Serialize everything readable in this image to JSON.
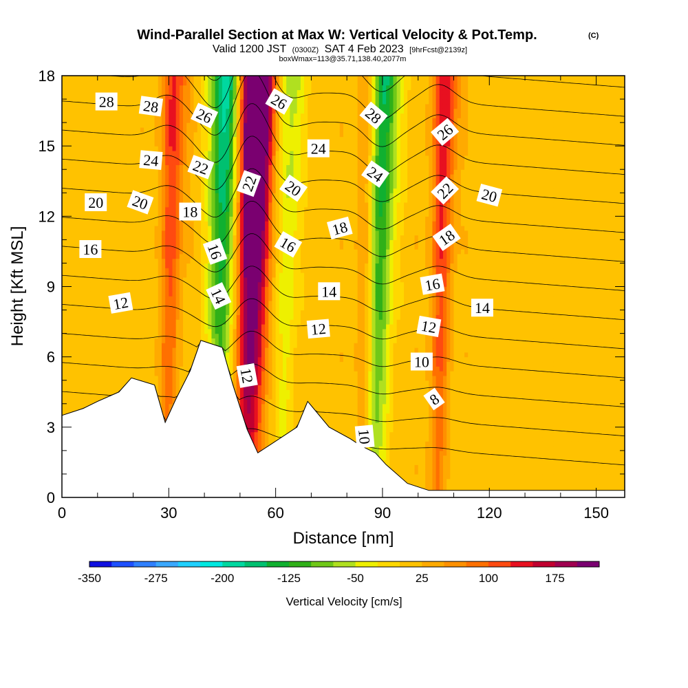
{
  "chart_data": {
    "type": "heatmap",
    "title": "Wind-Parallel Section at Max W: Vertical Velocity & Pot.Temp.",
    "copyright": "(C)",
    "subtitle": {
      "valid": "Valid 1200 JST",
      "utc": "(0300Z)",
      "date": "SAT 4 Feb 2023",
      "forecast": "[9hrFcst@2139z]"
    },
    "box_info": "boxWmax=113@35.71,138.40,2077m",
    "xlabel": "Distance [nm]",
    "ylabel": "Height [Kft MSL]",
    "xlim": [
      0,
      158
    ],
    "ylim": [
      0,
      18
    ],
    "x_ticks": [
      0,
      30,
      60,
      90,
      120,
      150
    ],
    "x_tick_labels": [
      "0",
      "30",
      "60",
      "90",
      "120",
      "150"
    ],
    "y_ticks": [
      0,
      3,
      6,
      9,
      12,
      15,
      18
    ],
    "y_tick_labels": [
      "0",
      "3",
      "6",
      "9",
      "12",
      "15",
      "18"
    ],
    "colorbar": {
      "label": "Vertical Velocity [cm/s]",
      "levels": [
        -350,
        -325,
        -300,
        -275,
        -250,
        -225,
        -200,
        -175,
        -150,
        -125,
        -100,
        -75,
        -50,
        -25,
        0,
        25,
        50,
        75,
        100,
        125,
        150,
        175,
        200
      ],
      "tick_values": [
        -350,
        -275,
        -200,
        -125,
        -50,
        25,
        100,
        175
      ],
      "tick_labels": [
        "-350",
        "-275",
        "-200",
        "-125",
        "-50",
        "25",
        "100",
        "175"
      ],
      "colors": [
        "#1010e0",
        "#1e50ff",
        "#2f80ff",
        "#3aa8ff",
        "#20d0ff",
        "#00e8e0",
        "#00d8a0",
        "#00c070",
        "#10b030",
        "#30b018",
        "#70c818",
        "#b0e020",
        "#eef000",
        "#ffd800",
        "#ffc200",
        "#ffaa00",
        "#ff9000",
        "#ff7000",
        "#ff4a10",
        "#e81020",
        "#c00030",
        "#a00050",
        "#7a0070"
      ]
    },
    "w_columns": [
      {
        "x": 30,
        "w": 90
      },
      {
        "x": 42,
        "w": -40
      },
      {
        "x": 44.5,
        "w": -130
      },
      {
        "x": 47,
        "w": 0
      },
      {
        "x": 52,
        "w": 190
      },
      {
        "x": 55,
        "w": 130
      },
      {
        "x": 63,
        "w": -60
      },
      {
        "x": 85,
        "w": 40
      },
      {
        "x": 88,
        "w": -110
      },
      {
        "x": 91,
        "w": -50
      },
      {
        "x": 106,
        "w": 100
      }
    ],
    "terrain": [
      {
        "x": 0,
        "h": 3.5
      },
      {
        "x": 6,
        "h": 3.8
      },
      {
        "x": 10,
        "h": 4.1
      },
      {
        "x": 16,
        "h": 4.5
      },
      {
        "x": 19.5,
        "h": 5.1
      },
      {
        "x": 26,
        "h": 4.8
      },
      {
        "x": 29,
        "h": 3.2
      },
      {
        "x": 32,
        "h": 4.2
      },
      {
        "x": 36,
        "h": 5.4
      },
      {
        "x": 39,
        "h": 6.7
      },
      {
        "x": 45,
        "h": 6.4
      },
      {
        "x": 48,
        "h": 4.8
      },
      {
        "x": 52,
        "h": 2.9
      },
      {
        "x": 55,
        "h": 1.9
      },
      {
        "x": 58,
        "h": 2.2
      },
      {
        "x": 66,
        "h": 3.0
      },
      {
        "x": 69,
        "h": 4.1
      },
      {
        "x": 75,
        "h": 3.0
      },
      {
        "x": 81,
        "h": 2.5
      },
      {
        "x": 84,
        "h": 2.2
      },
      {
        "x": 88,
        "h": 1.9
      },
      {
        "x": 91,
        "h": 1.4
      },
      {
        "x": 94,
        "h": 1.0
      },
      {
        "x": 97,
        "h": 0.6
      },
      {
        "x": 103,
        "h": 0.3
      },
      {
        "x": 158,
        "h": 0.3
      }
    ],
    "contour_levels": [
      4,
      6,
      8,
      10,
      12,
      14,
      16,
      18,
      20,
      22,
      24,
      26,
      28,
      30
    ],
    "contour_labels": [
      {
        "text": "28",
        "x": 12.5,
        "y": 16.9,
        "angle": 0
      },
      {
        "text": "28",
        "x": 25,
        "y": 16.7,
        "angle": 8
      },
      {
        "text": "26",
        "x": 40,
        "y": 16.3,
        "angle": 25
      },
      {
        "text": "26",
        "x": 61,
        "y": 16.9,
        "angle": 30
      },
      {
        "text": "28",
        "x": 87.5,
        "y": 16.3,
        "angle": 40
      },
      {
        "text": "26",
        "x": 107.5,
        "y": 15.6,
        "angle": -40
      },
      {
        "text": "24",
        "x": 25,
        "y": 14.4,
        "angle": 5
      },
      {
        "text": "24",
        "x": 72,
        "y": 14.9,
        "angle": 0
      },
      {
        "text": "22",
        "x": 39,
        "y": 14.1,
        "angle": 20
      },
      {
        "text": "22",
        "x": 52.5,
        "y": 13.4,
        "angle": -70
      },
      {
        "text": "24",
        "x": 88,
        "y": 13.8,
        "angle": 35
      },
      {
        "text": "22",
        "x": 107.5,
        "y": 13.1,
        "angle": -45
      },
      {
        "text": "20",
        "x": 9.5,
        "y": 12.6,
        "angle": 0
      },
      {
        "text": "20",
        "x": 22,
        "y": 12.6,
        "angle": 20
      },
      {
        "text": "20",
        "x": 65,
        "y": 13.2,
        "angle": 35
      },
      {
        "text": "20",
        "x": 120,
        "y": 12.9,
        "angle": 15
      },
      {
        "text": "18",
        "x": 36,
        "y": 12.2,
        "angle": 0
      },
      {
        "text": "18",
        "x": 78,
        "y": 11.5,
        "angle": -15
      },
      {
        "text": "16",
        "x": 8,
        "y": 10.6,
        "angle": 0
      },
      {
        "text": "16",
        "x": 43,
        "y": 10.5,
        "angle": 70
      },
      {
        "text": "16",
        "x": 63.5,
        "y": 10.8,
        "angle": 30
      },
      {
        "text": "18",
        "x": 108,
        "y": 11.1,
        "angle": -35
      },
      {
        "text": "14",
        "x": 44,
        "y": 8.6,
        "angle": 65
      },
      {
        "text": "14",
        "x": 75,
        "y": 8.8,
        "angle": 0
      },
      {
        "text": "16",
        "x": 104,
        "y": 9.1,
        "angle": -10
      },
      {
        "text": "12",
        "x": 16.5,
        "y": 8.3,
        "angle": -10
      },
      {
        "text": "14",
        "x": 118,
        "y": 8.1,
        "angle": 0
      },
      {
        "text": "12",
        "x": 72,
        "y": 7.2,
        "angle": -5
      },
      {
        "text": "12",
        "x": 103,
        "y": 7.3,
        "angle": 10
      },
      {
        "text": "10",
        "x": 101,
        "y": 5.8,
        "angle": 0
      },
      {
        "text": "12",
        "x": 52,
        "y": 5.2,
        "angle": 80
      },
      {
        "text": "8",
        "x": 104.5,
        "y": 4.2,
        "angle": -35
      },
      {
        "text": "10",
        "x": 85,
        "y": 2.6,
        "angle": 85
      }
    ]
  }
}
